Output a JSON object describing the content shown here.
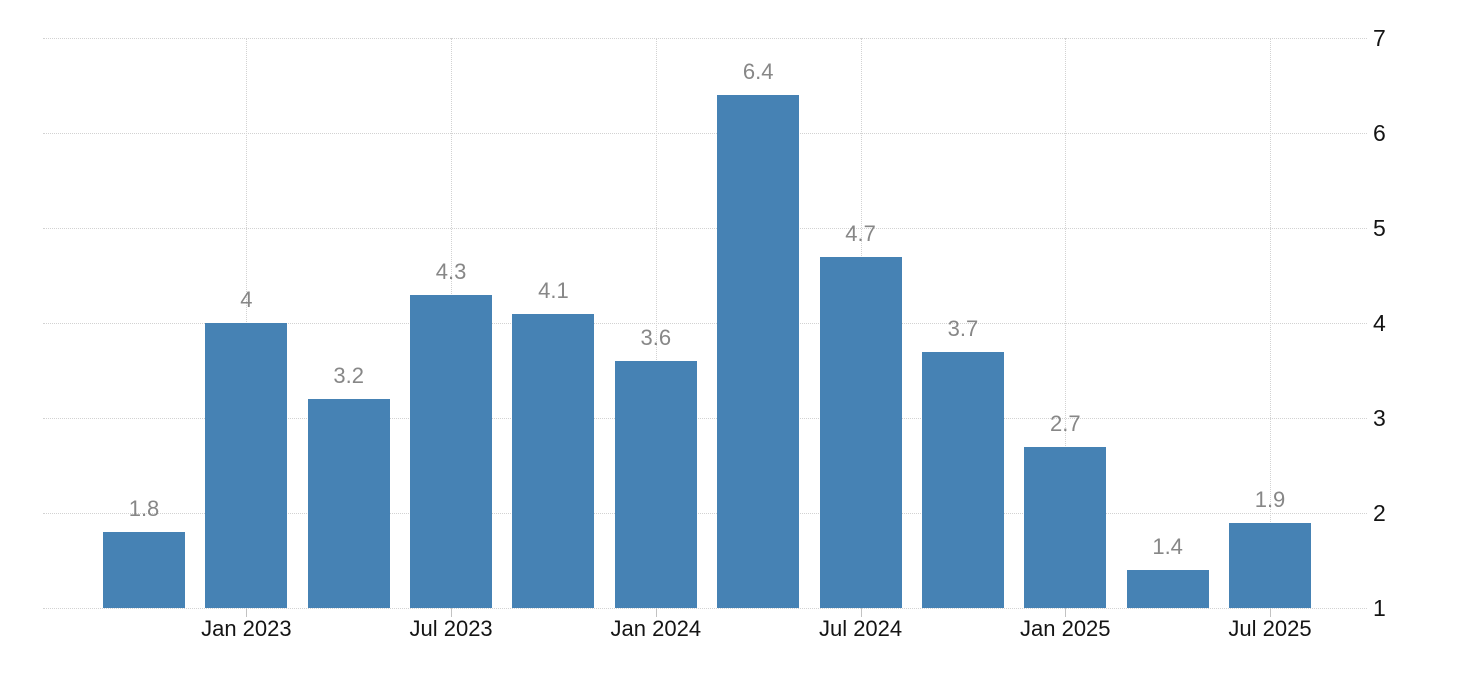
{
  "chart_data": {
    "type": "bar",
    "values": [
      1.8,
      4,
      3.2,
      4.3,
      4.1,
      3.6,
      6.4,
      4.7,
      3.7,
      2.7,
      1.4,
      1.9
    ],
    "bar_labels": [
      "1.8",
      "4",
      "3.2",
      "4.3",
      "4.1",
      "3.6",
      "6.4",
      "4.7",
      "3.7",
      "2.7",
      "1.4",
      "1.9"
    ],
    "x_tick_labels": [
      "Jan 2023",
      "Jul 2023",
      "Jan 2024",
      "Jul 2024",
      "Jan 2025",
      "Jul 2025"
    ],
    "x_tick_bar_indices": [
      1,
      3,
      5,
      7,
      9,
      11
    ],
    "y_ticks": [
      1,
      2,
      3,
      4,
      5,
      6,
      7
    ],
    "ylim": [
      1,
      7
    ],
    "title": "",
    "xlabel": "",
    "ylabel": "",
    "legend": "none",
    "y_axis_side": "right",
    "grid": "dotted horizontal lines at every y tick, dotted vertical lines at labeled x ticks",
    "colors": {
      "bar": "#4682b4",
      "bar_value_label": "#878787",
      "axis_text": "#141414",
      "gridline": "#d2d2d2",
      "tick_mark": "#c2c2c2",
      "background": "#ffffff"
    }
  }
}
